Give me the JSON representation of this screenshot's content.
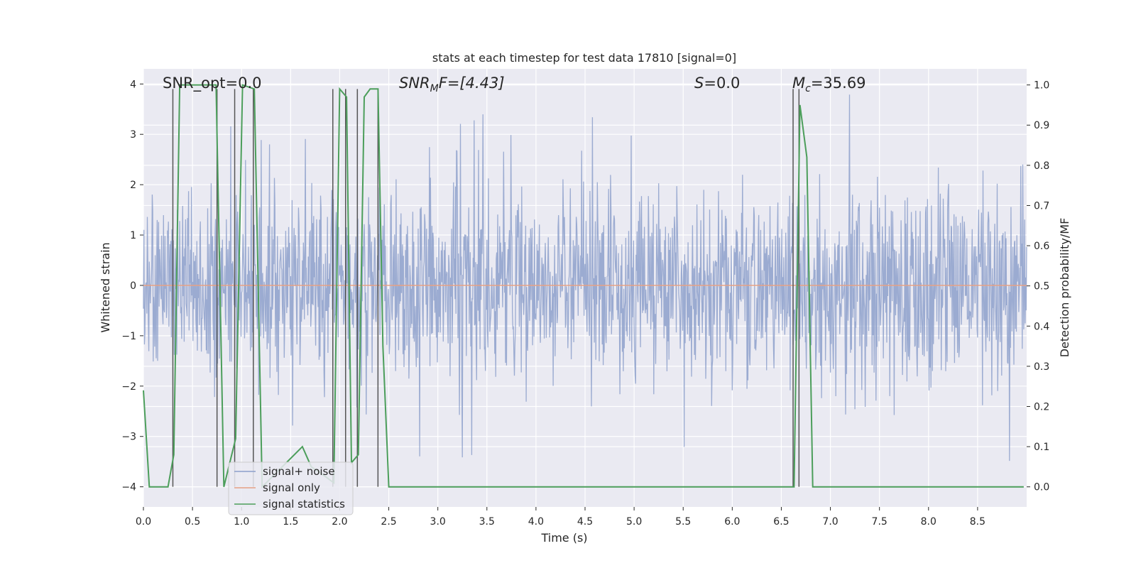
{
  "chart_data": {
    "type": "line",
    "title": "stats at each timestep for test data 17810 [signal=0]",
    "xlabel": "Time (s)",
    "ylabel": "Whitened strain",
    "ylabel_right": "Detection probability/MF",
    "xlim": [
      0,
      9.0
    ],
    "ylim": [
      -4.4,
      4.3
    ],
    "ylim_right": [
      -0.05,
      1.04
    ],
    "x_ticks": [
      "0.0",
      "0.5",
      "1.0",
      "1.5",
      "2.0",
      "2.5",
      "3.0",
      "3.5",
      "4.0",
      "4.5",
      "5.0",
      "5.5",
      "6.0",
      "6.5",
      "7.0",
      "7.5",
      "8.0",
      "8.5"
    ],
    "x_tick_values": [
      0,
      0.5,
      1,
      1.5,
      2,
      2.5,
      3,
      3.5,
      4,
      4.5,
      5,
      5.5,
      6,
      6.5,
      7,
      7.5,
      8,
      8.5
    ],
    "y_ticks": [
      "−4",
      "−3",
      "−2",
      "−1",
      "0",
      "1",
      "2",
      "3",
      "4"
    ],
    "y_tick_values": [
      -4,
      -3,
      -2,
      -1,
      0,
      1,
      2,
      3,
      4
    ],
    "y_ticks_right": [
      "0.0",
      "0.1",
      "0.2",
      "0.3",
      "0.4",
      "0.5",
      "0.6",
      "0.7",
      "0.8",
      "0.9",
      "1.0"
    ],
    "y_tick_values_right": [
      0,
      0.1,
      0.2,
      0.3,
      0.4,
      0.5,
      0.6,
      0.7,
      0.8,
      0.9,
      1.0
    ],
    "grid": true,
    "annotations": {
      "snr_opt": "SNR_opt=0.0",
      "snr_mf_label": "SNR",
      "snr_mf_sub": "M",
      "snr_mf_rest": "F=[4.43]",
      "s_label": "S",
      "s_rest": "=0.0",
      "mc_label": "M",
      "mc_sub": "c",
      "mc_rest": "=35.69"
    },
    "noise": {
      "name": "signal+ noise",
      "color": "#8da0cb",
      "dt": 0.005,
      "typical_amplitude": [
        -1.9,
        2.3
      ],
      "extreme_range": [
        -4.0,
        3.9
      ],
      "note": "dense random strain samples between ~-4.0 and ~3.9"
    },
    "signal_only": {
      "name": "signal only",
      "color": "#e5a084",
      "values_constant": 0.0
    },
    "statistics": {
      "name": "signal statistics",
      "color": "#4c9e5b",
      "x": [
        0.0,
        0.06,
        0.25,
        0.31,
        0.37,
        0.74,
        0.82,
        0.94,
        1.01,
        1.13,
        1.21,
        1.62,
        1.71,
        1.83,
        1.94,
        2.0,
        2.07,
        2.12,
        2.19,
        2.25,
        2.31,
        2.39,
        2.44,
        2.5,
        6.63,
        6.69,
        6.76,
        6.82,
        8.97
      ],
      "values": [
        0.24,
        0.0,
        0.0,
        0.08,
        1.0,
        1.0,
        0.0,
        0.12,
        1.0,
        0.99,
        0.0,
        0.1,
        0.05,
        0.03,
        0.01,
        0.99,
        0.97,
        0.06,
        0.08,
        0.97,
        0.99,
        0.99,
        0.35,
        0.0,
        0.0,
        0.95,
        0.82,
        0.0,
        0.0
      ]
    },
    "detection_lines": {
      "color": "#555555",
      "x": [
        0.3,
        0.75,
        0.93,
        1.12,
        1.93,
        2.06,
        2.18,
        2.39,
        6.62,
        6.68
      ],
      "y_range": [
        -4.0,
        3.9
      ]
    },
    "legend": {
      "position": "lower-left",
      "entries": [
        "signal+ noise",
        "signal only",
        "signal statistics"
      ]
    }
  }
}
